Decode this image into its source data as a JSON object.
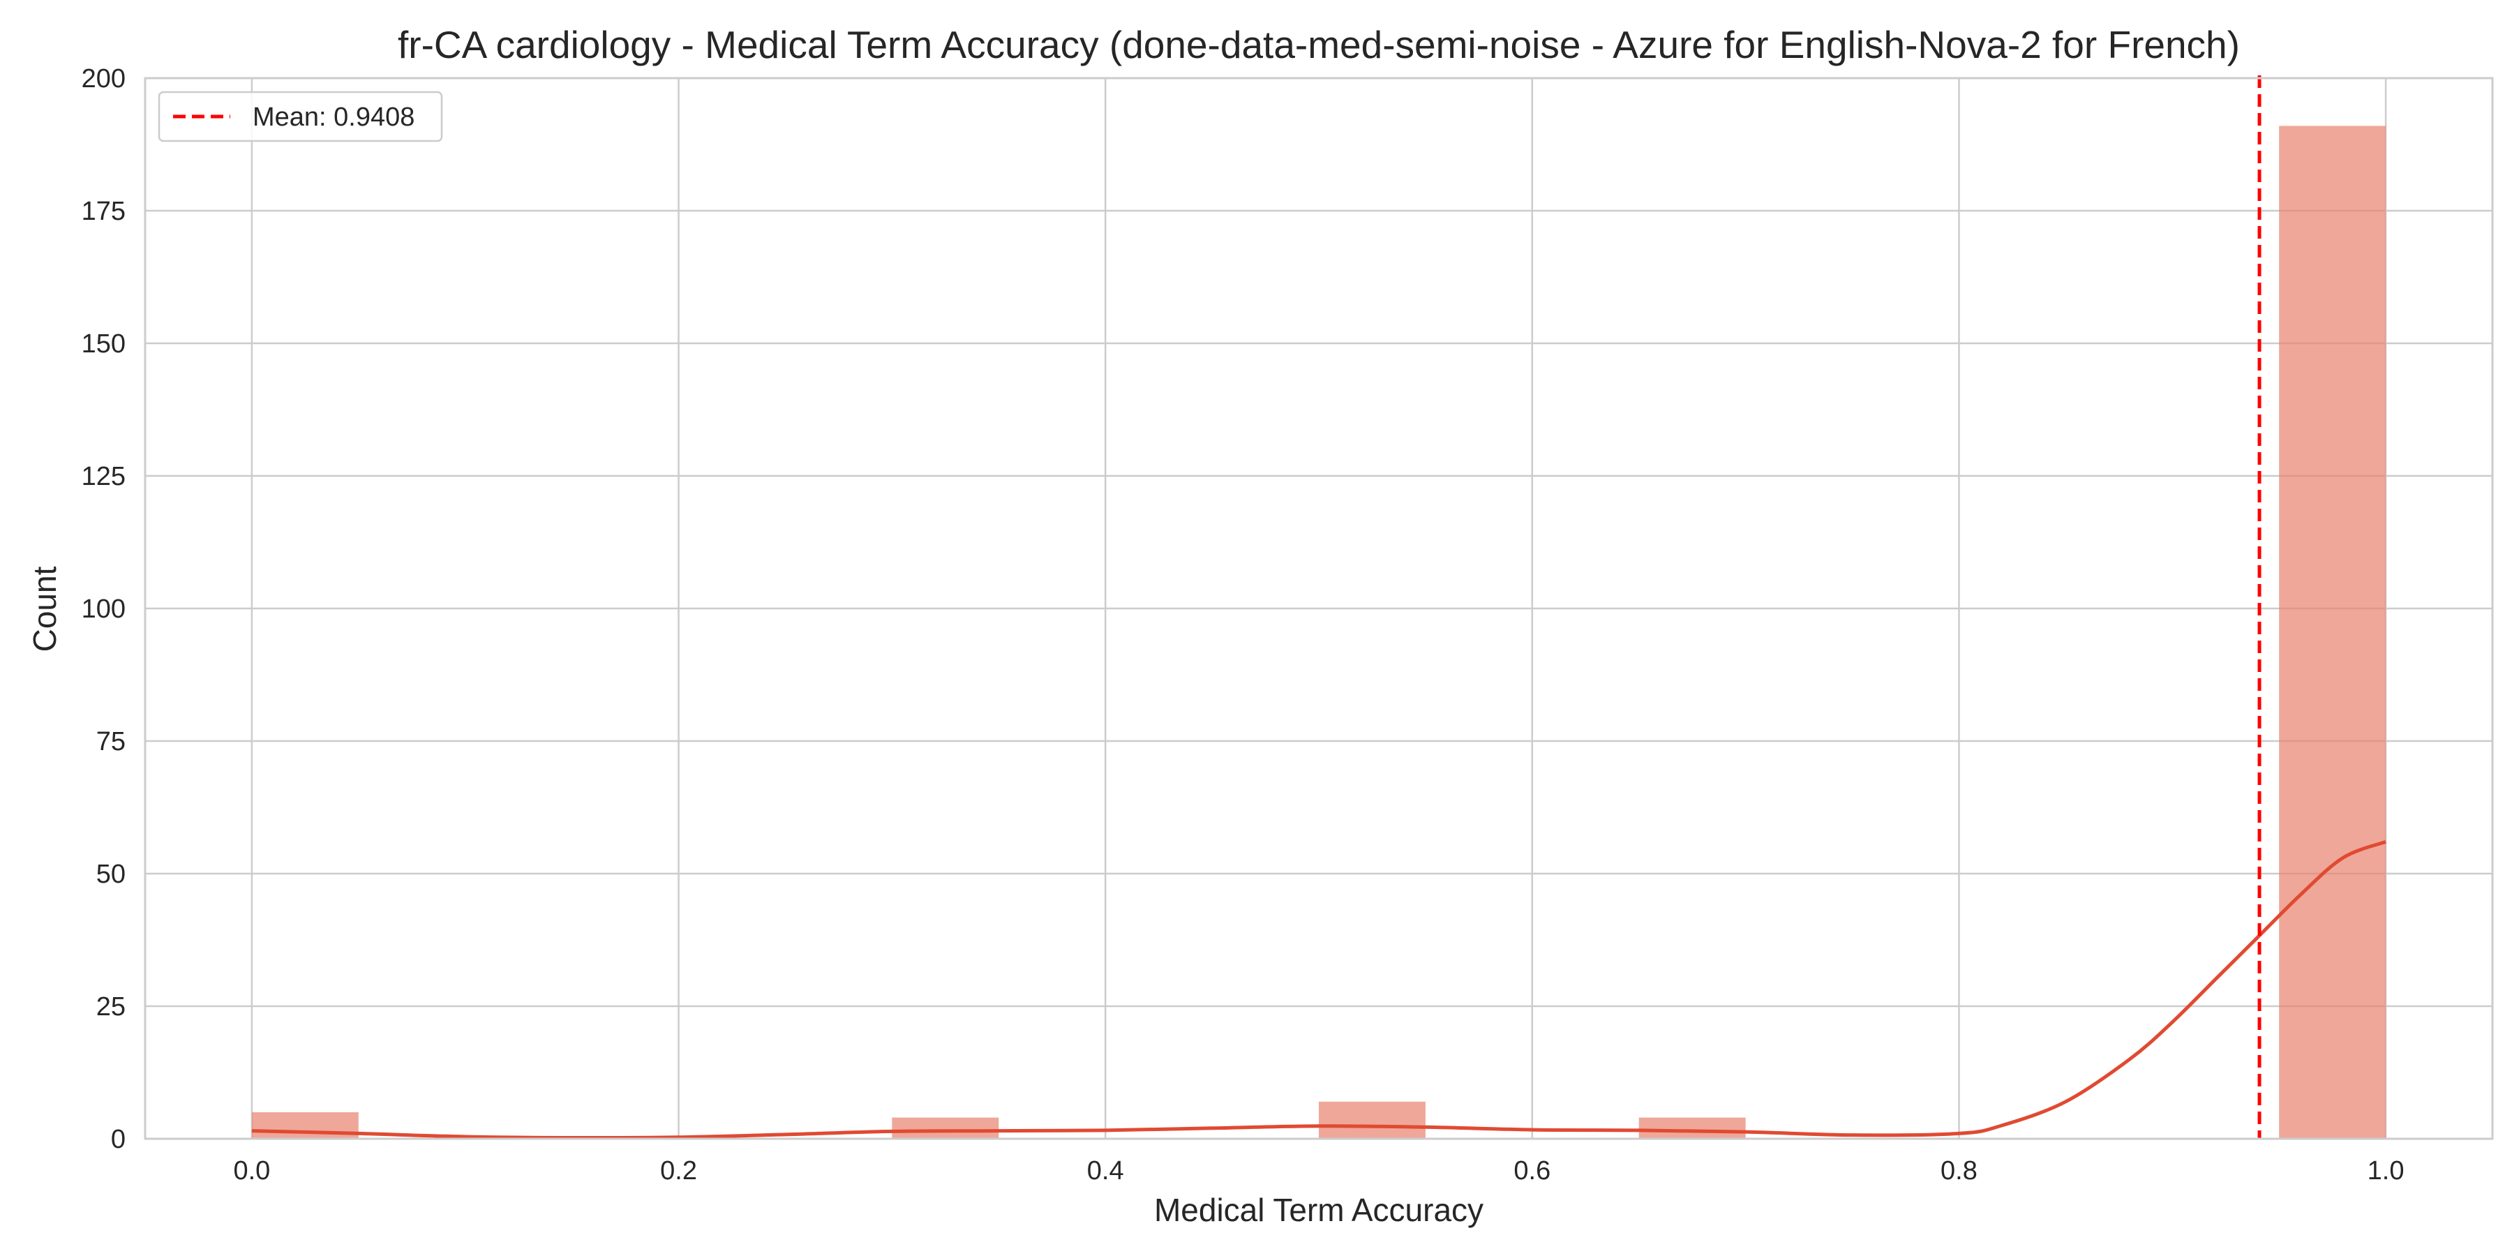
{
  "chart_data": {
    "type": "histogram",
    "title": "fr-CA cardiology - Medical Term Accuracy (done-data-med-semi-noise - Azure for English-Nova-2 for French)",
    "xlabel": "Medical Term Accuracy",
    "ylabel": "Count",
    "xlim": [
      -0.05,
      1.05
    ],
    "ylim": [
      0,
      200
    ],
    "xticks": [
      0.0,
      0.2,
      0.4,
      0.6,
      0.8,
      1.0
    ],
    "xtick_labels": [
      "0.0",
      "0.2",
      "0.4",
      "0.6",
      "0.8",
      "1.0"
    ],
    "yticks": [
      0,
      25,
      50,
      75,
      100,
      125,
      150,
      175,
      200
    ],
    "ytick_labels": [
      "0",
      "25",
      "50",
      "75",
      "100",
      "125",
      "150",
      "175",
      "200"
    ],
    "grid": true,
    "bins": [
      {
        "x0": 0.0,
        "x1": 0.05,
        "count": 5
      },
      {
        "x0": 0.3,
        "x1": 0.35,
        "count": 4
      },
      {
        "x0": 0.5,
        "x1": 0.55,
        "count": 7
      },
      {
        "x0": 0.65,
        "x1": 0.7,
        "count": 4
      },
      {
        "x0": 0.95,
        "x1": 1.0,
        "count": 191
      }
    ],
    "kde": {
      "x": [
        0.0,
        0.05,
        0.1,
        0.15,
        0.2,
        0.25,
        0.3,
        0.35,
        0.4,
        0.45,
        0.5,
        0.55,
        0.6,
        0.65,
        0.7,
        0.75,
        0.8,
        0.82,
        0.85,
        0.88,
        0.9,
        0.92,
        0.94,
        0.96,
        0.98,
        1.0
      ],
      "y": [
        1.5,
        1.0,
        0.4,
        0.2,
        0.3,
        0.8,
        1.4,
        1.5,
        1.6,
        2.0,
        2.4,
        2.2,
        1.7,
        1.6,
        1.3,
        0.7,
        1.0,
        2.5,
        7.0,
        15.0,
        22.0,
        30.0,
        38.0,
        46.0,
        53.0,
        56.0
      ]
    },
    "mean": 0.9408,
    "legend": {
      "placement": "top-left",
      "entries": [
        "Mean: 0.9408"
      ]
    },
    "colors": {
      "bar": "#e8816d",
      "bar_opacity": 0.7,
      "kde": "#e04a32",
      "mean_line": "#ff0000",
      "grid": "#cccccc",
      "text": "#262626"
    }
  }
}
